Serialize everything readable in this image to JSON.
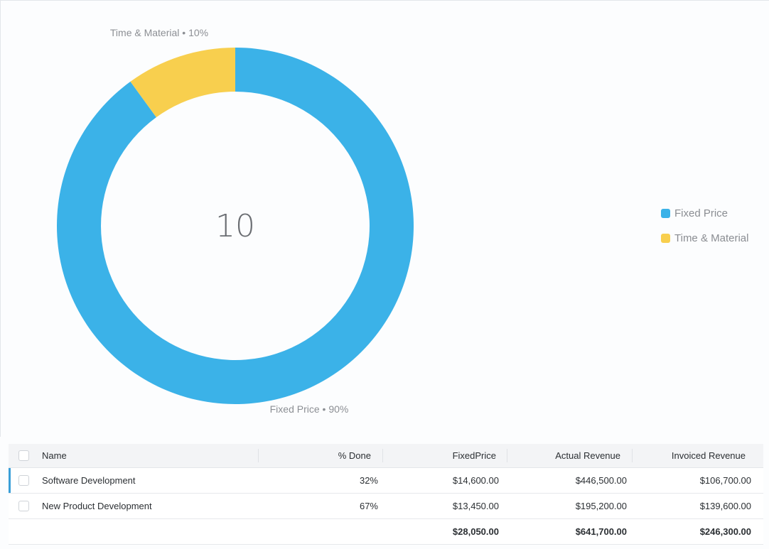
{
  "chart_data": {
    "type": "pie",
    "donut": true,
    "center_label": "10",
    "categories": [
      "Fixed Price",
      "Time & Material"
    ],
    "values": [
      90,
      10
    ],
    "unit": "%",
    "colors": [
      "#3bb2e8",
      "#f8cf4e"
    ],
    "slice_labels": [
      "Fixed Price •  90%",
      "Time & Material •  10%"
    ],
    "legend": {
      "placement": "right",
      "entries": [
        "Fixed Price",
        "Time & Material"
      ]
    }
  },
  "grid": {
    "columns": [
      "Name",
      "% Done",
      "FixedPrice",
      "Actual Revenue",
      "Invoiced Revenue"
    ],
    "rows": [
      {
        "name": "Software Development",
        "done": "32%",
        "fixed_price": "$14,600.00",
        "actual_revenue": "$446,500.00",
        "invoiced_revenue": "$106,700.00",
        "selected": true
      },
      {
        "name": "New Product Development",
        "done": "67%",
        "fixed_price": "$13,450.00",
        "actual_revenue": "$195,200.00",
        "invoiced_revenue": "$139,600.00",
        "selected": false
      }
    ],
    "totals": {
      "fixed_price": "$28,050.00",
      "actual_revenue": "$641,700.00",
      "invoiced_revenue": "$246,300.00"
    },
    "accent_color": "#3a9fd8"
  }
}
